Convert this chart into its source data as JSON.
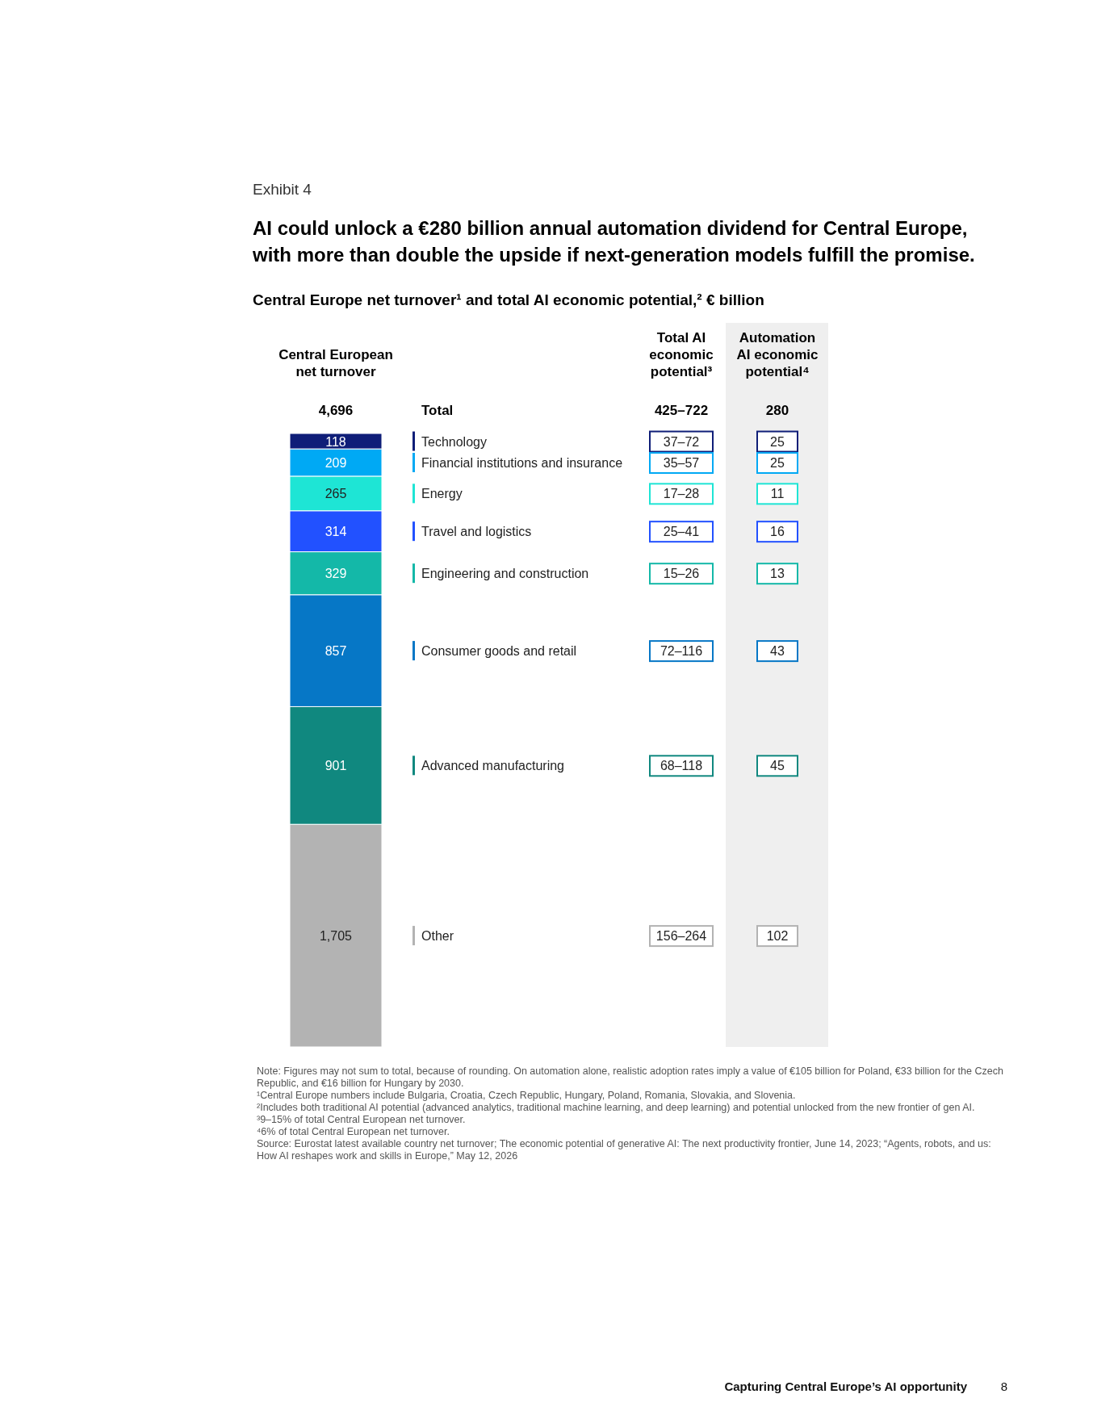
{
  "chart_data": [
    {
      "type": "bar",
      "stacked": true,
      "title": "AI could unlock a €280 billion annual automation dividend for Central Europe, with more than double the upside if next-generation models fulfill the promise.",
      "subtitle": "Central Europe net turnover¹ and total AI economic potential,² € billion",
      "xlabel": "Central European net turnover",
      "categories": [
        null
      ],
      "totals": [
        "4,696"
      ],
      "legend": "right",
      "series": [
        {
          "name": "Other",
          "color": "#b3b3b3",
          "values": [
            1705
          ],
          "value_labels": [
            "1,705"
          ]
        },
        {
          "name": "Advanced manufacturing",
          "color": "#10887f",
          "values": [
            901
          ],
          "value_labels": [
            "901"
          ]
        },
        {
          "name": "Consumer goods and retail",
          "color": "#0677c6",
          "values": [
            857
          ],
          "value_labels": [
            "857"
          ]
        },
        {
          "name": "Engineering and construction",
          "color": "#14b8a8",
          "values": [
            329
          ],
          "value_labels": [
            "329"
          ]
        },
        {
          "name": "Travel and logistics",
          "color": "#2251ff",
          "values": [
            314
          ],
          "value_labels": [
            "314"
          ]
        },
        {
          "name": "Energy",
          "color": "#1ee5d5",
          "values": [
            265
          ],
          "value_labels": [
            "265"
          ]
        },
        {
          "name": "Financial institutions and insurance",
          "color": "#00a9f4",
          "values": [
            209
          ],
          "value_labels": [
            "209"
          ]
        },
        {
          "name": "Technology",
          "color": "#0f1e78",
          "values": [
            118
          ],
          "value_labels": [
            "118"
          ]
        }
      ],
      "annotations": [
        "Exhibit 4",
        "Total",
        "Note: Figures may not sum to total, because of rounding. On automation alone, realistic adoption rates imply a value of €105 billion for Poland, €33 billion for the Czech Republic, and €16 billion for Hungary by 2030.",
        "¹Central Europe numbers include Bulgaria, Croatia, Czech Republic, Hungary, Poland, Romania, Slovakia, and Slovenia.",
        "²Includes both traditional AI potential (advanced analytics, traditional machine learning, and deep learning) and potential unlocked from the new frontier of gen AI.",
        "³9–15% of total Central European net turnover.",
        "⁴6% of total Central European net turnover.",
        "Source: Eurostat latest available country net turnover; The economic potential of generative AI: The next productivity frontier, June 14, 2023; “Agents, robots, and us: How AI reshapes work and skills in Europe,” May 12, 2026",
        "Capturing Central Europe’s AI opportunity",
        "8"
      ]
    },
    {
      "type": "other",
      "title": "Total AI economic potential³",
      "value_labels": [
        "425–722",
        "37–72",
        "35–57",
        "17–28",
        "25–41",
        "15–26",
        "72–116",
        "68–118",
        "156–264"
      ]
    },
    {
      "type": "other",
      "title": "Automation AI economic potential⁴",
      "values": [
        280,
        25,
        25,
        11,
        16,
        13,
        43,
        45,
        102
      ],
      "data_labels": true
    }
  ]
}
